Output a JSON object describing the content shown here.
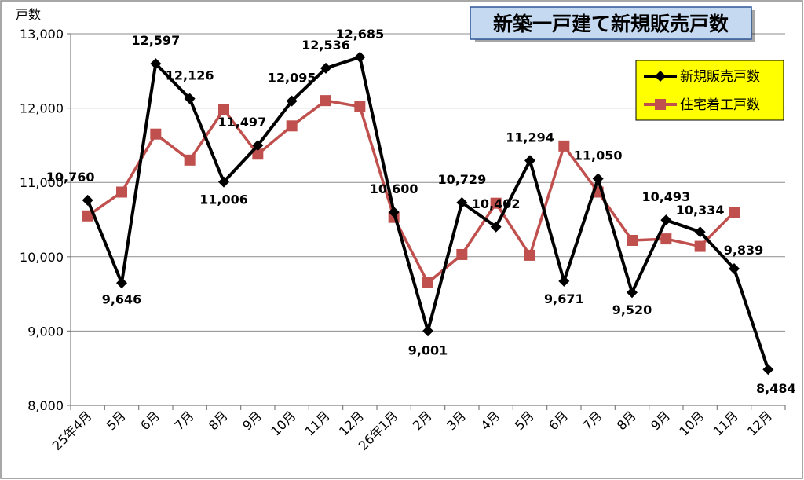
{
  "chart_data": {
    "type": "line",
    "title": "新築一戸建て新規販売戸数",
    "ylabel": "戸数",
    "ylim": [
      8000,
      13000
    ],
    "yticks": [
      8000,
      9000,
      10000,
      11000,
      12000,
      13000
    ],
    "ytick_labels": [
      "8,000",
      "9,000",
      "10,000",
      "11,000",
      "12,000",
      "13,000"
    ],
    "categories": [
      "25年4月",
      "5月",
      "6月",
      "7月",
      "8月",
      "9月",
      "10月",
      "11月",
      "12月",
      "26年1月",
      "2月",
      "3月",
      "4月",
      "5月",
      "6月",
      "7月",
      "8月",
      "9月",
      "10月",
      "11月",
      "12月"
    ],
    "grid": true,
    "legend_position": "top-right",
    "series": [
      {
        "name": "新規販売戸数",
        "color": "#000000",
        "marker": "diamond",
        "values": [
          10760,
          9646,
          12597,
          12126,
          11006,
          11497,
          12095,
          12536,
          12685,
          10600,
          9001,
          10729,
          10402,
          11294,
          9671,
          11050,
          9520,
          10493,
          10334,
          9839,
          8484
        ],
        "data_labels": [
          "10,760",
          "9,646",
          "12,597",
          "12,126",
          "11,006",
          "11,497",
          "12,095",
          "12,536",
          "12,685",
          "10,600",
          "9,001",
          "10,729",
          "10,402",
          "11,294",
          "9,671",
          "11,050",
          "9,520",
          "10,493",
          "10,334",
          "9,839",
          "8,484"
        ]
      },
      {
        "name": "住宅着工戸数",
        "color": "#c0504d",
        "marker": "square",
        "values": [
          10550,
          10870,
          11650,
          11300,
          11980,
          11380,
          11760,
          12100,
          12020,
          10530,
          9650,
          10030,
          10720,
          10020,
          11490,
          10870,
          10220,
          10240,
          10140,
          10600,
          null
        ]
      }
    ]
  }
}
